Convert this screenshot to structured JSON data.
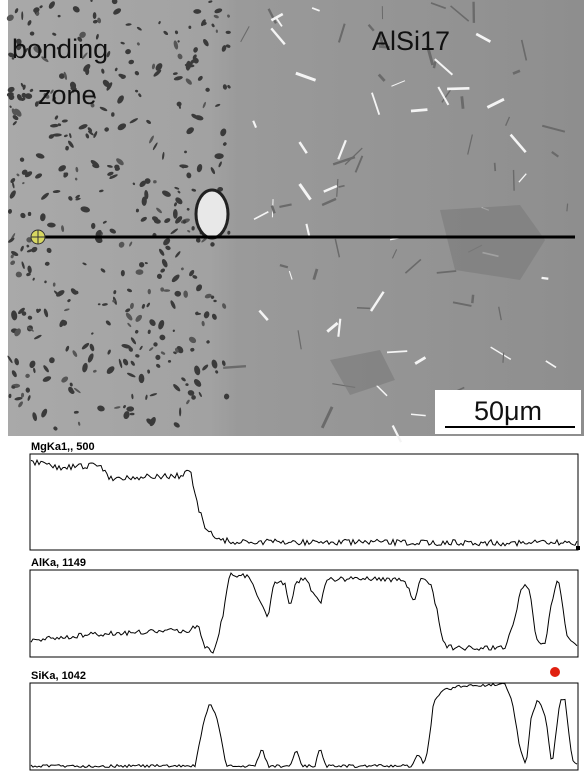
{
  "image": {
    "labels": {
      "bonding": "bonding",
      "zone": "zone",
      "alloy": "AlSi17"
    },
    "scale_bar": "50μm"
  },
  "profiles": [
    {
      "label": "MgKa1,, 500"
    },
    {
      "label": "AlKa, 1149"
    },
    {
      "label": "SiKa, 1042"
    }
  ]
}
